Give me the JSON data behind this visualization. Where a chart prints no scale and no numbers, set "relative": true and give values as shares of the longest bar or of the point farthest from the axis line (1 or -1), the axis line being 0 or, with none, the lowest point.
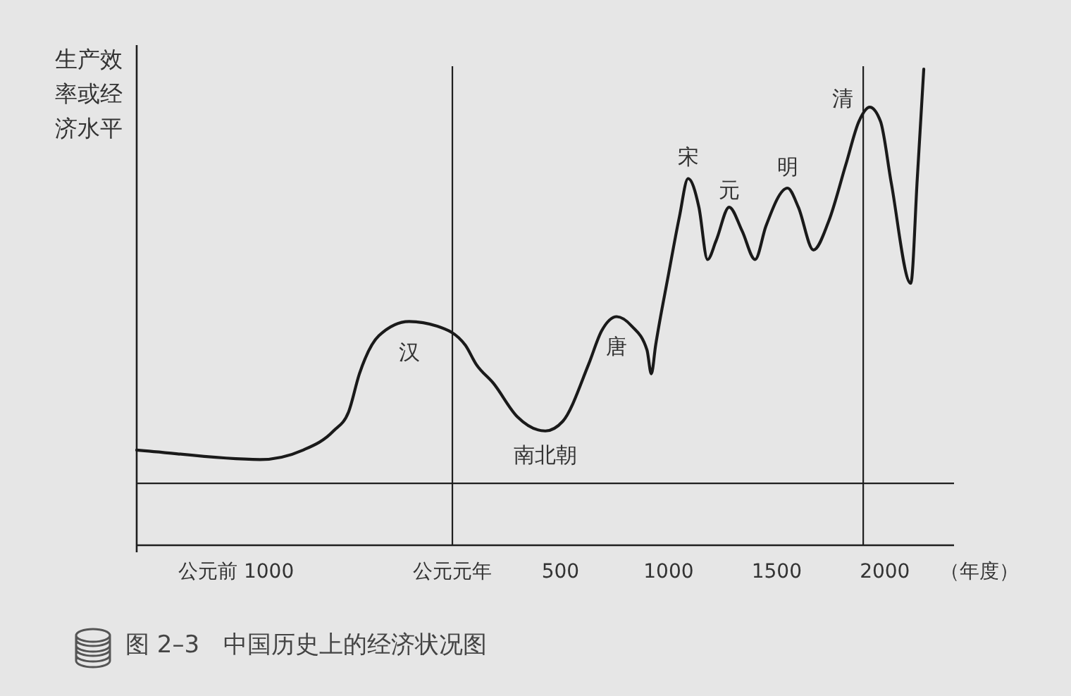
{
  "chart_data": {
    "type": "line",
    "relative": true,
    "ylabel": "生产效率或经济水平",
    "xlabel": "（年度）",
    "x": [
      -1460,
      -890,
      -690,
      -550,
      -480,
      -430,
      -340,
      -200,
      -70,
      60,
      110,
      190,
      300,
      430,
      510,
      630,
      690,
      760,
      830,
      900,
      920,
      940,
      1000,
      1050,
      1090,
      1140,
      1180,
      1220,
      1280,
      1340,
      1400,
      1450,
      1550,
      1600,
      1670,
      1740,
      1820,
      1880,
      1930,
      1980,
      2030,
      2120,
      2150,
      2180
    ],
    "values": [
      0.2,
      0.18,
      0.2,
      0.24,
      0.28,
      0.36,
      0.44,
      0.47,
      0.46,
      0.42,
      0.38,
      0.34,
      0.27,
      0.24,
      0.26,
      0.38,
      0.45,
      0.48,
      0.46,
      0.41,
      0.36,
      0.42,
      0.57,
      0.69,
      0.77,
      0.71,
      0.6,
      0.64,
      0.71,
      0.66,
      0.6,
      0.67,
      0.75,
      0.71,
      0.62,
      0.68,
      0.8,
      0.89,
      0.92,
      0.89,
      0.76,
      0.55,
      0.77,
      1
    ],
    "color": "#1a1a1a",
    "line_style": "solid",
    "tick_labels": "x",
    "xlim": [
      -1460,
      2320
    ],
    "xticks": [
      {
        "value": -1000,
        "label": "公元前 1000"
      },
      {
        "value": 0,
        "label": "公元元年"
      },
      500,
      1000,
      1500,
      2000
    ],
    "ref_lines": [
      {
        "axis": "x",
        "value": 0
      },
      {
        "axis": "x",
        "value": 1900
      },
      {
        "axis": "y",
        "value": 0.13
      }
    ],
    "annotations": [
      {
        "text": "汉",
        "x": -200,
        "y": 0.47
      },
      {
        "text": "南北朝",
        "x": 430,
        "y": 0.24
      },
      {
        "text": "唐",
        "x": 760,
        "y": 0.48
      },
      {
        "text": "宋",
        "x": 1090,
        "y": 0.77
      },
      {
        "text": "元",
        "x": 1280,
        "y": 0.71
      },
      {
        "text": "明",
        "x": 1550,
        "y": 0.75
      },
      {
        "text": "清",
        "x": 1930,
        "y": 0.92
      },
      "图 2–3　中国历史上的经济状况图"
    ]
  }
}
